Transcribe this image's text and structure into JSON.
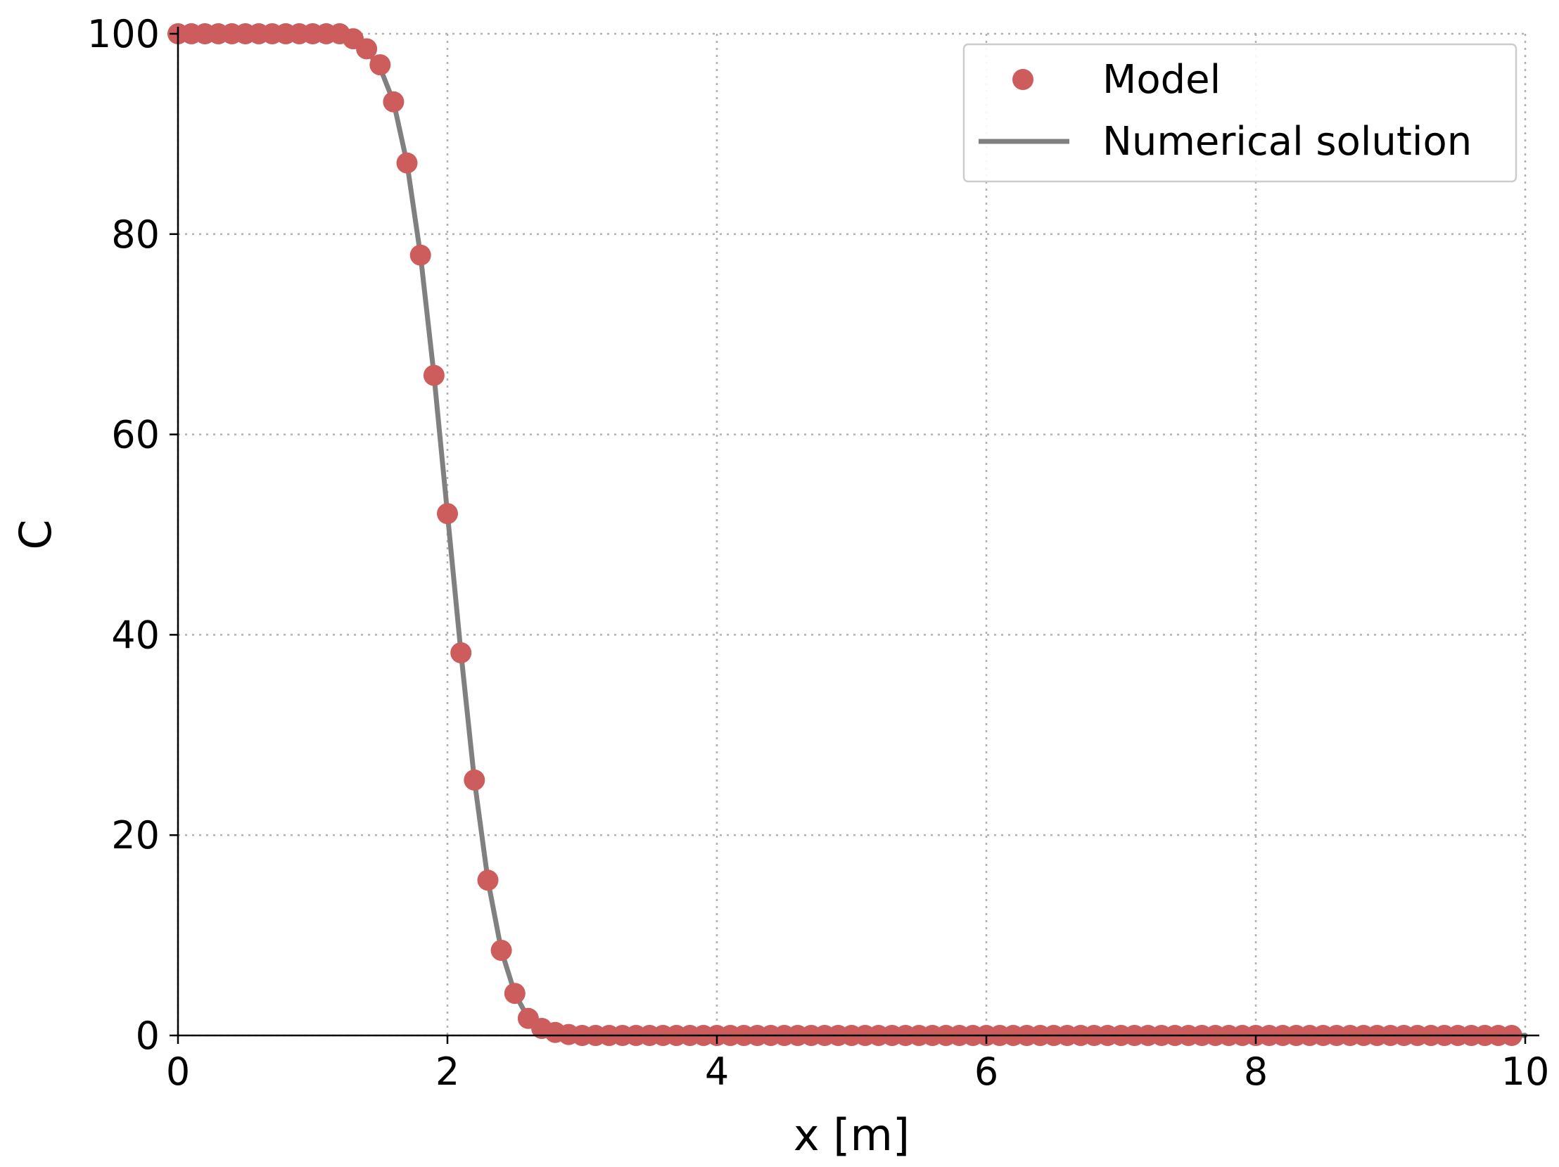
{
  "chart_data": {
    "type": "scatter",
    "xlabel": "x [m]",
    "ylabel": "C",
    "xlim": [
      0,
      10
    ],
    "ylim": [
      0,
      100
    ],
    "xticks": [
      "0",
      "2",
      "4",
      "6",
      "8",
      "10"
    ],
    "yticks": [
      "0",
      "20",
      "40",
      "60",
      "80",
      "100"
    ],
    "grid": true,
    "legend_position": "top-right",
    "series": [
      {
        "name": "Model",
        "kind": "scatter",
        "color": "#cd5c5c",
        "x": [
          0.0,
          0.1,
          0.2,
          0.3,
          0.4,
          0.5,
          0.6,
          0.7,
          0.8,
          0.9,
          1.0,
          1.1,
          1.2,
          1.3,
          1.4,
          1.5,
          1.6,
          1.7,
          1.8,
          1.9,
          2.0,
          2.1,
          2.2,
          2.3,
          2.4,
          2.5,
          2.6,
          2.7,
          2.8,
          2.9,
          3.0,
          3.1,
          3.2,
          3.3,
          3.4,
          3.5,
          3.6,
          3.7,
          3.8,
          3.9,
          4.0,
          4.1,
          4.2,
          4.3,
          4.4,
          4.5,
          4.6,
          4.7,
          4.8,
          4.9,
          5.0,
          5.1,
          5.2,
          5.3,
          5.4,
          5.5,
          5.6,
          5.7,
          5.8,
          5.9,
          6.0,
          6.1,
          6.2,
          6.3,
          6.4,
          6.5,
          6.6,
          6.7,
          6.8,
          6.9,
          7.0,
          7.1,
          7.2,
          7.3,
          7.4,
          7.5,
          7.6,
          7.7,
          7.8,
          7.9,
          8.0,
          8.1,
          8.2,
          8.3,
          8.4,
          8.5,
          8.6,
          8.7,
          8.8,
          8.9,
          9.0,
          9.1,
          9.2,
          9.3,
          9.4,
          9.5,
          9.6,
          9.7,
          9.8,
          9.9
        ],
        "y": [
          100,
          100,
          100,
          100,
          100,
          100,
          100,
          100,
          100,
          100,
          100,
          100,
          100,
          99.5,
          98.5,
          96.9,
          93.2,
          87.1,
          77.9,
          65.9,
          52.1,
          38.2,
          25.5,
          15.5,
          8.5,
          4.2,
          1.7,
          0.7,
          0.3,
          0.1,
          0,
          0,
          0,
          0,
          0,
          0,
          0,
          0,
          0,
          0,
          0,
          0,
          0,
          0,
          0,
          0,
          0,
          0,
          0,
          0,
          0,
          0,
          0,
          0,
          0,
          0,
          0,
          0,
          0,
          0,
          0,
          0,
          0,
          0,
          0,
          0,
          0,
          0,
          0,
          0,
          0,
          0,
          0,
          0,
          0,
          0,
          0,
          0,
          0,
          0,
          0,
          0,
          0,
          0,
          0,
          0,
          0,
          0,
          0,
          0,
          0,
          0,
          0,
          0,
          0,
          0,
          0,
          0,
          0,
          0
        ]
      },
      {
        "name": "Numerical solution",
        "kind": "line",
        "color": "#808080",
        "x": [
          0.0,
          0.5,
          1.0,
          1.1,
          1.2,
          1.3,
          1.4,
          1.5,
          1.6,
          1.7,
          1.8,
          1.9,
          2.0,
          2.1,
          2.2,
          2.3,
          2.4,
          2.5,
          2.6,
          2.7,
          2.8,
          2.9,
          3.0,
          4.0,
          6.0,
          8.0,
          10.0
        ],
        "y": [
          100,
          100,
          100,
          99.9,
          99.7,
          99.2,
          98.3,
          96.6,
          93.2,
          87.1,
          77.9,
          65.9,
          52.1,
          38.2,
          25.5,
          15.5,
          8.5,
          4.2,
          1.7,
          0.7,
          0.3,
          0.1,
          0,
          0,
          0,
          0,
          0
        ]
      }
    ]
  }
}
